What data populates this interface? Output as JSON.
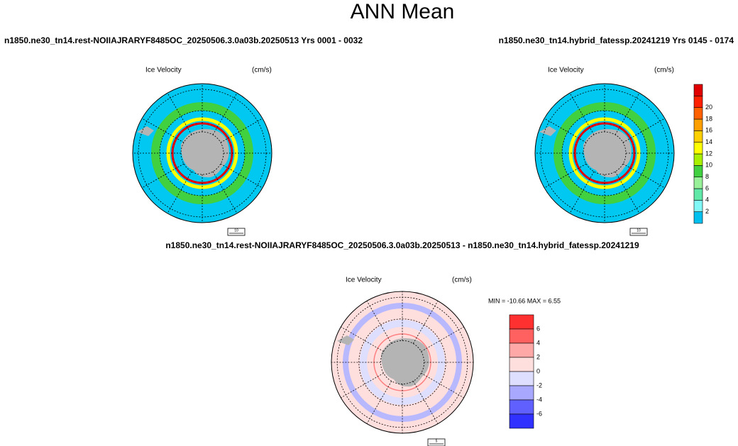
{
  "title": "ANN Mean",
  "panels": [
    {
      "case": "n1850.ne30_tn14.rest-NOIIAJRARYF8485OC_20250506.3.0a03b.20250513  Yrs 0001 - 0032",
      "field": "Ice Velocity",
      "units": "(cm/s)",
      "vector_ref": "10"
    },
    {
      "case": "n1850.ne30_tn14.hybrid_fatessp.20241219  Yrs 0145 - 0174",
      "field": "Ice Velocity",
      "units": "(cm/s)",
      "vector_ref": "10"
    },
    {
      "case": "n1850.ne30_tn14.rest-NOIIAJRARYF8485OC_20250506.3.0a03b.20250513 - n1850.ne30_tn14.hybrid_fatessp.20241219",
      "field": "Ice Velocity",
      "units": "(cm/s)",
      "stats": "MIN = -10.66 MAX =   6.55",
      "vector_ref": "5"
    }
  ],
  "colorbars": [
    {
      "colors": [
        "#00c0f0",
        "#80f8f8",
        "#60e8a8",
        "#98f098",
        "#40d040",
        "#a8f000",
        "#ffff00",
        "#ffd000",
        "#ffa000",
        "#ff6000",
        "#ff2000",
        "#e00000"
      ],
      "ticks": [
        2,
        4,
        6,
        8,
        10,
        12,
        14,
        16,
        18,
        20
      ]
    },
    {
      "colors": [
        "#ff3030",
        "#ff6060",
        "#ffa8a8",
        "#ffdede",
        "#dedeff",
        "#a8a8ff",
        "#6060ff",
        "#3030ff"
      ],
      "ticks": [
        6,
        4,
        2,
        0,
        -2,
        -4,
        -6
      ]
    }
  ]
}
